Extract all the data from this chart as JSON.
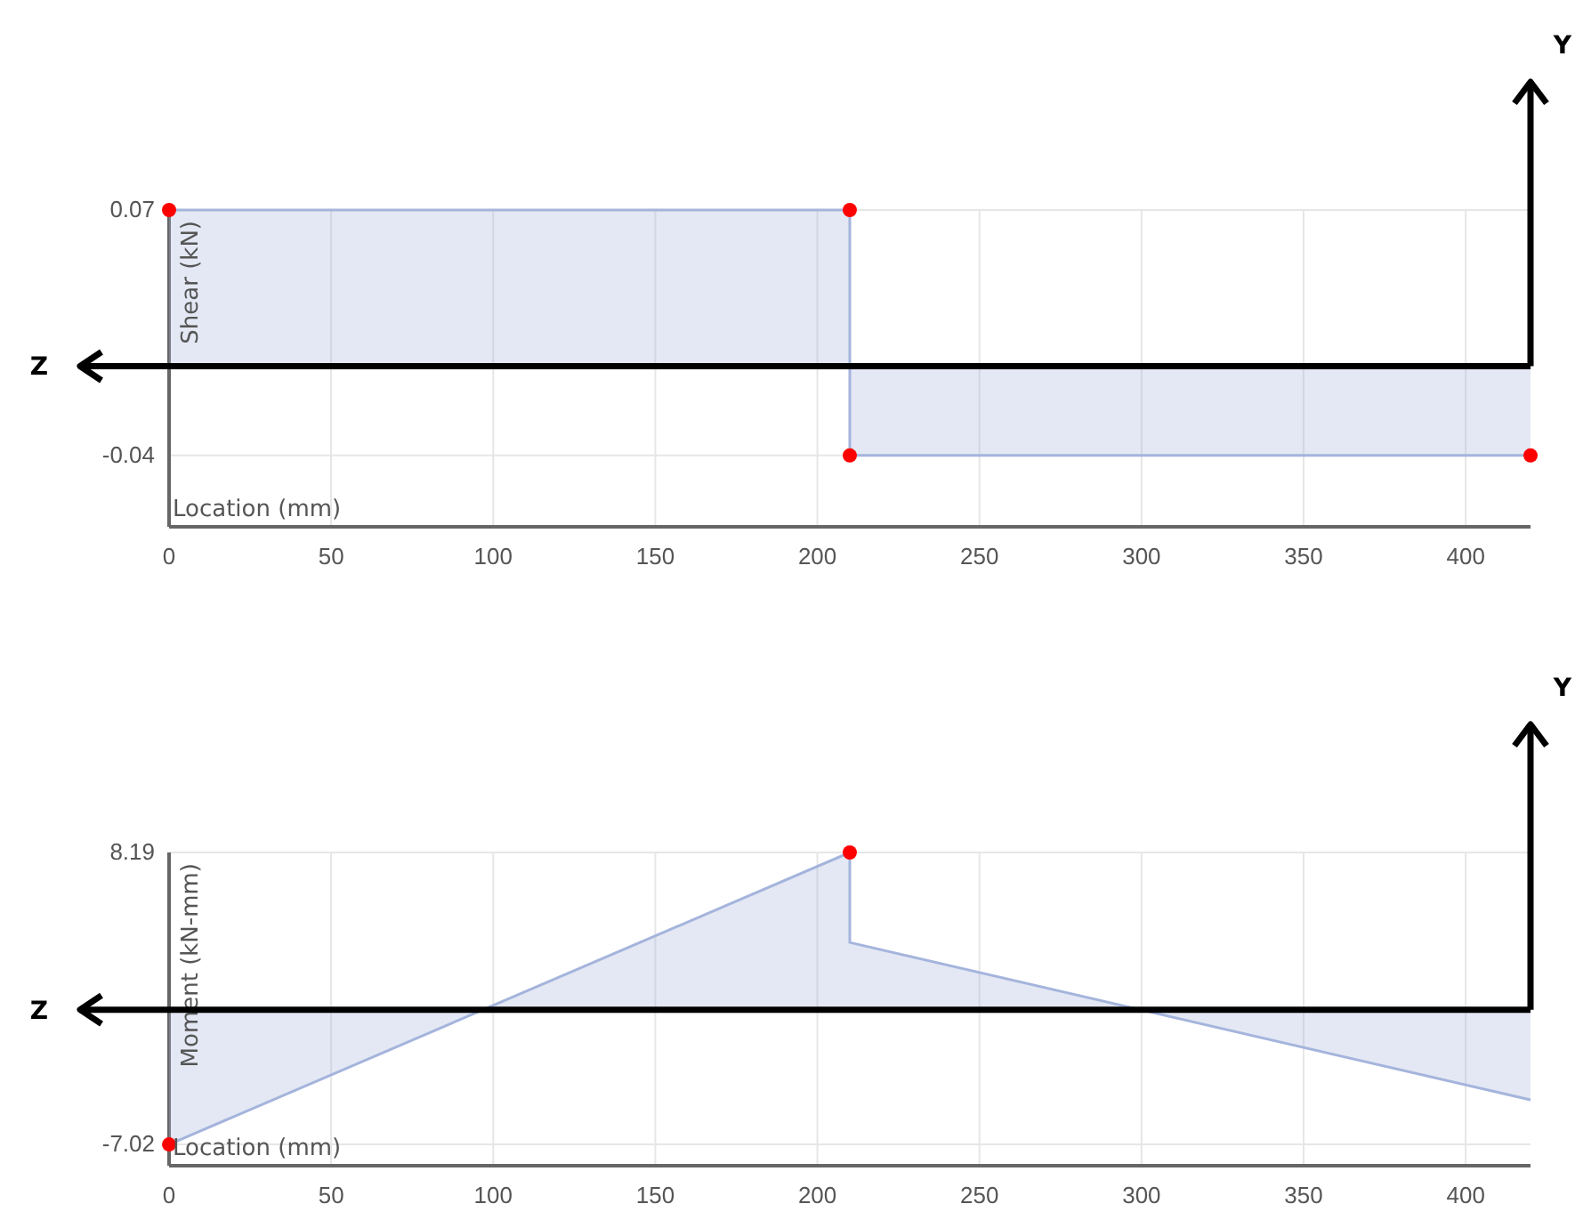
{
  "chart_data": [
    {
      "type": "area",
      "ylabel": "Shear (kN)",
      "xlabel": "Location (mm)",
      "xlim": [
        0,
        420
      ],
      "xticks": [
        0,
        50,
        100,
        150,
        200,
        250,
        300,
        350,
        400
      ],
      "ylim": [
        -0.072,
        0.07
      ],
      "yticks": [
        0.07,
        -0.04
      ],
      "grid": true,
      "ref_lines": [
        {
          "axis": "y",
          "value": 0,
          "label": "Z",
          "color": "#000000"
        },
        {
          "axis": "x",
          "value": 420,
          "label": "Y",
          "color": "#000000"
        }
      ],
      "series": [
        {
          "color": "#a4b4dc",
          "x": [
            0,
            210,
            210,
            420
          ],
          "values": [
            0.07,
            0.07,
            -0.04,
            -0.04
          ]
        },
        {
          "type": "scatter",
          "marker": "circle",
          "color": "#ff0000",
          "x": [
            0,
            210,
            210,
            420
          ],
          "values": [
            0.07,
            0.07,
            -0.04,
            -0.04
          ]
        }
      ]
    },
    {
      "type": "area",
      "ylabel": "Moment (kN-mm)",
      "xlabel": "Location (mm)",
      "xlim": [
        0,
        420
      ],
      "xticks": [
        0,
        50,
        100,
        150,
        200,
        250,
        300,
        350,
        400
      ],
      "ylim": [
        -8.13,
        8.19
      ],
      "yticks": [
        8.19,
        -7.02
      ],
      "grid": true,
      "ref_lines": [
        {
          "axis": "y",
          "value": 0,
          "label": "Z",
          "color": "#000000"
        },
        {
          "axis": "x",
          "value": 420,
          "label": "Y",
          "color": "#000000"
        }
      ],
      "series": [
        {
          "color": "#a4b4dc",
          "x": [
            0,
            210,
            210,
            420
          ],
          "values": [
            -7.02,
            8.19,
            3.5,
            -4.7
          ]
        },
        {
          "type": "scatter",
          "marker": "circle",
          "color": "#ff0000",
          "x": [
            0,
            210
          ],
          "values": [
            -7.02,
            8.19
          ]
        }
      ]
    }
  ]
}
